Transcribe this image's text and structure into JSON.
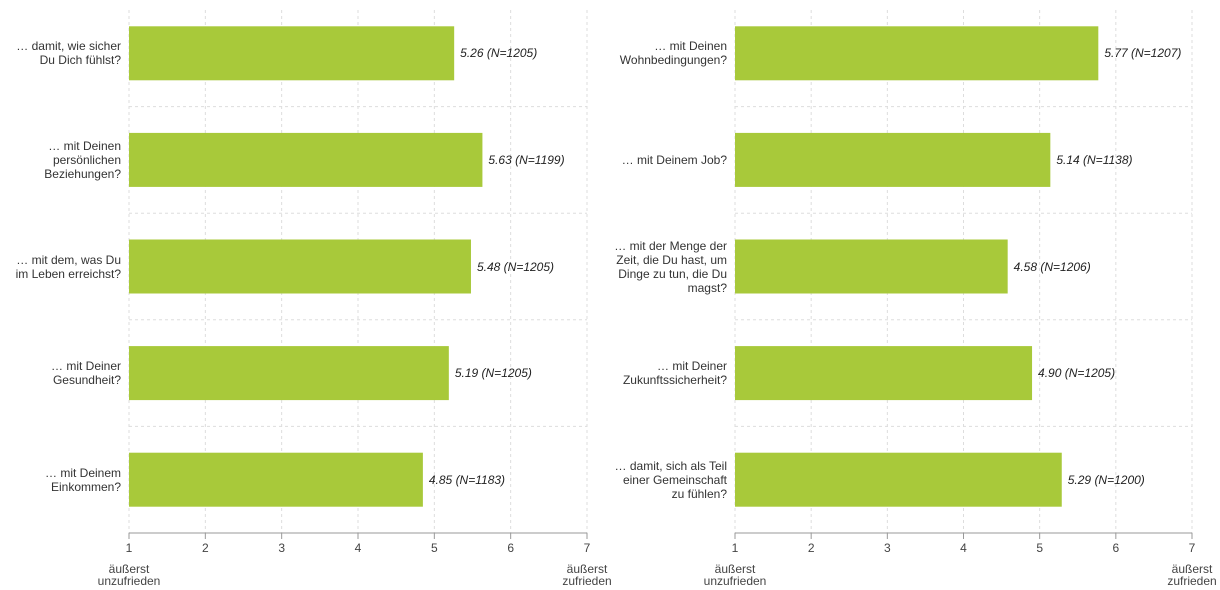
{
  "chart_data": [
    {
      "type": "bar",
      "orientation": "horizontal",
      "color": "#a8c93a",
      "categories": [
        "… damit, wie sicher Du Dich fühlst?",
        "… mit Deinen persönlichen Beziehungen?",
        "… mit dem, was Du im Leben erreichst?",
        "… mit Deiner Gesundheit?",
        "… mit Deinem Einkommen?"
      ],
      "values": [
        5.26,
        5.63,
        5.48,
        5.19,
        4.85
      ],
      "value_labels": [
        "5.26 (N=1205)",
        "5.63 (N=1199)",
        "5.48 (N=1205)",
        "5.19 (N=1205)",
        "4.85 (N=1183)"
      ],
      "xlim": [
        1,
        7
      ],
      "xticks": [
        1,
        2,
        3,
        4,
        5,
        6,
        7
      ],
      "grid": true,
      "axis_end_labels": [
        "äußerst unzufrieden",
        "äußerst zufrieden"
      ]
    },
    {
      "type": "bar",
      "orientation": "horizontal",
      "color": "#a8c93a",
      "categories": [
        "… mit Deinen Wohnbedingungen?",
        "… mit Deinem Job?",
        "… mit der Menge der Zeit, die Du hast, um Dinge zu tun, die Du magst?",
        "… mit Deiner Zukunftssicherheit?",
        "… damit, sich als Teil einer Gemeinschaft zu fühlen?"
      ],
      "values": [
        5.77,
        5.14,
        4.58,
        4.9,
        5.29
      ],
      "value_labels": [
        "5.77 (N=1207)",
        "5.14 (N=1138)",
        "4.58 (N=1206)",
        "4.90 (N=1205)",
        "5.29 (N=1200)"
      ],
      "xlim": [
        1,
        7
      ],
      "xticks": [
        1,
        2,
        3,
        4,
        5,
        6,
        7
      ],
      "grid": true,
      "axis_end_labels": [
        "äußerst unzufrieden",
        "äußerst zufrieden"
      ]
    }
  ]
}
